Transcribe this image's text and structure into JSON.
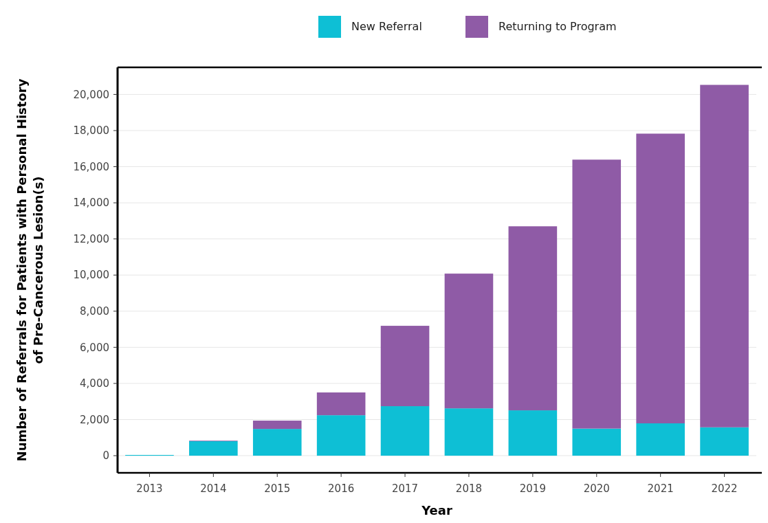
{
  "chart_data": {
    "type": "bar",
    "stacked": true,
    "categories": [
      "2013",
      "2014",
      "2015",
      "2016",
      "2017",
      "2018",
      "2019",
      "2020",
      "2021",
      "2022"
    ],
    "series": [
      {
        "name": "New Referral",
        "color": "#0ebfd5",
        "values": [
          40,
          800,
          1480,
          2240,
          2740,
          2620,
          2510,
          1500,
          1790,
          1570
        ]
      },
      {
        "name": "Returning to Program",
        "color": "#8f5ba6",
        "values": [
          0,
          30,
          460,
          1260,
          4450,
          7460,
          10190,
          14890,
          16040,
          18960
        ]
      }
    ],
    "xlabel": "Year",
    "ylabel": "Number of Referrals for Patients with Personal History\nof Pre-Cancerous Lesion(s)",
    "ylim": [
      -950,
      21500
    ],
    "yticks": [
      0,
      {
        "value": 2000,
        "label": "2,000"
      },
      {
        "value": 4000,
        "label": "4,000"
      },
      {
        "value": 6000,
        "label": "6,000"
      },
      {
        "value": 8000,
        "label": "8,000"
      },
      {
        "value": 10000,
        "label": "10,000"
      },
      {
        "value": 12000,
        "label": "12,000"
      },
      {
        "value": 14000,
        "label": "14,000"
      },
      {
        "value": 16000,
        "label": "16,000"
      },
      {
        "value": 18000,
        "label": "18,000"
      },
      {
        "value": 20000,
        "label": "20,000"
      }
    ],
    "grid": "y",
    "legend": "top"
  }
}
